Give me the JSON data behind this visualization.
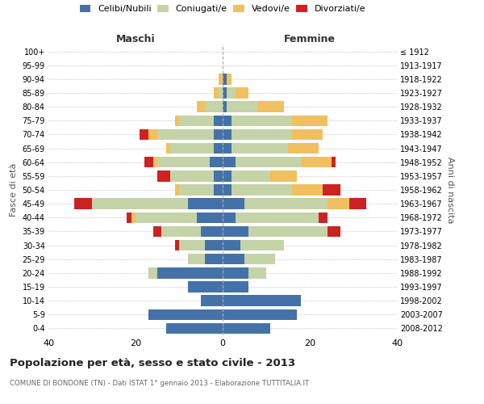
{
  "age_groups": [
    "100+",
    "95-99",
    "90-94",
    "85-89",
    "80-84",
    "75-79",
    "70-74",
    "65-69",
    "60-64",
    "55-59",
    "50-54",
    "45-49",
    "40-44",
    "35-39",
    "30-34",
    "25-29",
    "20-24",
    "15-19",
    "10-14",
    "5-9",
    "0-4"
  ],
  "birth_years": [
    "≤ 1912",
    "1913-1917",
    "1918-1922",
    "1923-1927",
    "1928-1932",
    "1933-1937",
    "1938-1942",
    "1943-1947",
    "1948-1952",
    "1953-1957",
    "1958-1962",
    "1963-1967",
    "1968-1972",
    "1973-1977",
    "1978-1982",
    "1983-1987",
    "1988-1992",
    "1993-1997",
    "1998-2002",
    "2003-2007",
    "2008-2012"
  ],
  "colors": {
    "celibi": "#4472a8",
    "coniugati": "#c5d3a8",
    "vedovi": "#f0c060",
    "divorziati": "#cc2222"
  },
  "maschi": {
    "celibi": [
      0,
      0,
      0,
      0,
      0,
      2,
      2,
      2,
      3,
      2,
      2,
      8,
      6,
      5,
      4,
      4,
      15,
      8,
      5,
      17,
      13
    ],
    "coniugati": [
      0,
      0,
      0,
      1,
      4,
      8,
      13,
      10,
      12,
      10,
      8,
      22,
      14,
      9,
      6,
      4,
      2,
      0,
      0,
      0,
      0
    ],
    "vedovi": [
      0,
      0,
      1,
      1,
      2,
      1,
      2,
      1,
      1,
      0,
      1,
      0,
      1,
      0,
      0,
      0,
      0,
      0,
      0,
      0,
      0
    ],
    "divorziati": [
      0,
      0,
      0,
      0,
      0,
      0,
      2,
      0,
      2,
      3,
      0,
      4,
      1,
      2,
      1,
      0,
      0,
      0,
      0,
      0,
      0
    ]
  },
  "femmine": {
    "celibi": [
      0,
      0,
      1,
      1,
      1,
      2,
      2,
      2,
      3,
      2,
      2,
      5,
      3,
      6,
      4,
      5,
      6,
      6,
      18,
      17,
      11
    ],
    "coniugati": [
      0,
      0,
      0,
      2,
      7,
      14,
      14,
      13,
      15,
      9,
      14,
      19,
      19,
      18,
      10,
      7,
      4,
      0,
      0,
      0,
      0
    ],
    "vedovi": [
      0,
      0,
      1,
      3,
      6,
      8,
      7,
      7,
      7,
      6,
      7,
      5,
      0,
      0,
      0,
      0,
      0,
      0,
      0,
      0,
      0
    ],
    "divorziati": [
      0,
      0,
      0,
      0,
      0,
      0,
      0,
      0,
      1,
      0,
      4,
      4,
      2,
      3,
      0,
      0,
      0,
      0,
      0,
      0,
      0
    ]
  },
  "xlim": 40,
  "title": "Popolazione per età, sesso e stato civile - 2013",
  "subtitle": "COMUNE DI BONDONE (TN) - Dati ISTAT 1° gennaio 2013 - Elaborazione TUTTITALIA.IT",
  "ylabel_left": "Fasce di età",
  "ylabel_right": "Anni di nascita",
  "xlabel_left": "Maschi",
  "xlabel_right": "Femmine"
}
